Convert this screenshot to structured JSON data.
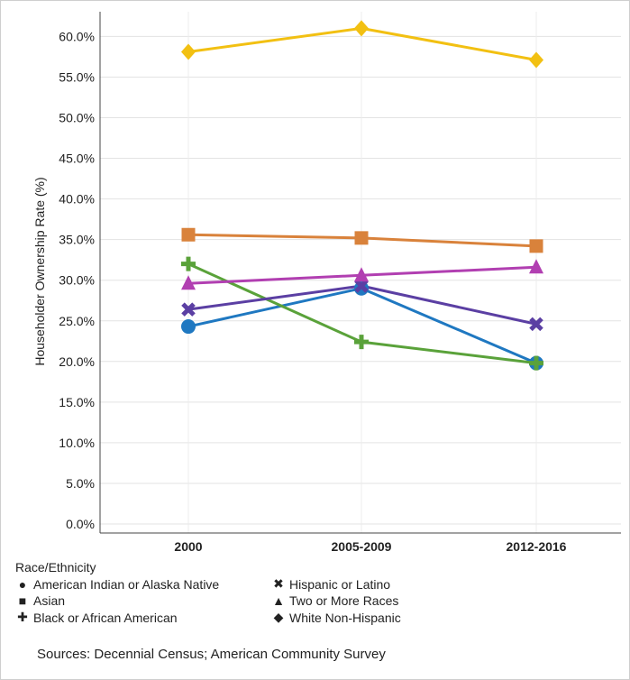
{
  "chart_data": {
    "type": "line",
    "title": "",
    "xlabel": "",
    "ylabel": "Householder Ownership Rate (%)",
    "categories": [
      "2000",
      "2005-2009",
      "2012-2016"
    ],
    "ylim": [
      0,
      62.5
    ],
    "yticks": [
      "0.0%",
      "5.0%",
      "10.0%",
      "15.0%",
      "20.0%",
      "25.0%",
      "30.0%",
      "35.0%",
      "40.0%",
      "45.0%",
      "50.0%",
      "55.0%",
      "60.0%"
    ],
    "grid": true,
    "series": [
      {
        "name": "American Indian or Alaska Native",
        "marker": "circle",
        "color": "#1f78c1",
        "values": [
          24.3,
          29.0,
          19.8
        ]
      },
      {
        "name": "Asian",
        "marker": "square",
        "color": "#d9823b",
        "values": [
          35.6,
          35.2,
          34.2
        ]
      },
      {
        "name": "Black or African American",
        "marker": "plus",
        "color": "#5aa23a",
        "values": [
          32.0,
          22.4,
          19.8
        ]
      },
      {
        "name": "Hispanic or Latino",
        "marker": "x",
        "color": "#5b3fa3",
        "values": [
          26.4,
          29.3,
          24.6
        ]
      },
      {
        "name": "Two or More Races",
        "marker": "triangle",
        "color": "#b13fb1",
        "values": [
          29.6,
          30.6,
          31.6
        ]
      },
      {
        "name": "White Non-Hispanic",
        "marker": "diamond",
        "color": "#f2c012",
        "values": [
          58.1,
          61.0,
          57.1
        ]
      }
    ]
  },
  "legend": {
    "title": "Race/Ethnicity",
    "items": [
      {
        "symbol": "●",
        "label": "American Indian or Alaska Native"
      },
      {
        "symbol": "✖",
        "label": "Hispanic or Latino"
      },
      {
        "symbol": "■",
        "label": "Asian"
      },
      {
        "symbol": "▲",
        "label": "Two or More Races"
      },
      {
        "symbol": "✚",
        "label": "Black or African American"
      },
      {
        "symbol": "◆",
        "label": "White Non-Hispanic"
      }
    ]
  },
  "source": "Sources: Decennial Census; American Community Survey"
}
